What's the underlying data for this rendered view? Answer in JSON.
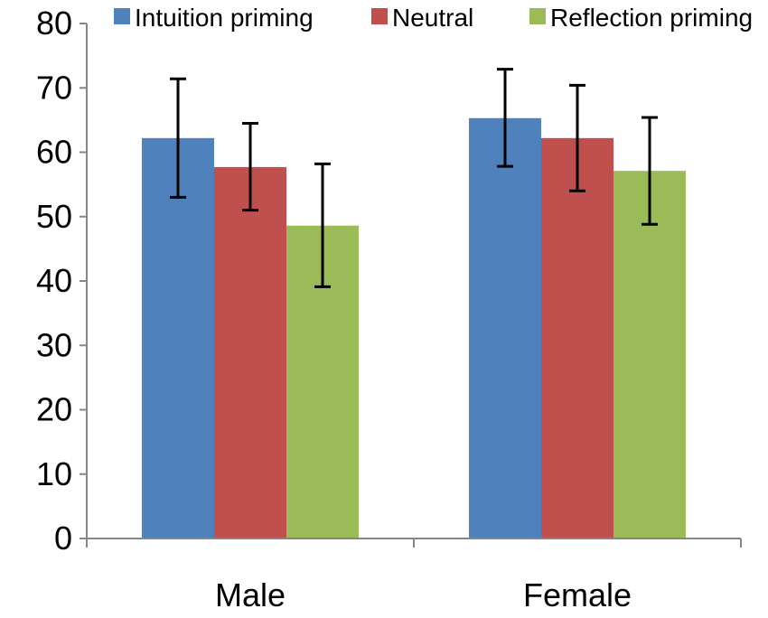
{
  "chart_data": {
    "type": "bar",
    "title": "",
    "xlabel": "",
    "ylabel": "",
    "categories": [
      "Male",
      "Female"
    ],
    "ylim": [
      0,
      80
    ],
    "yticks": [
      0,
      10,
      20,
      30,
      40,
      50,
      60,
      70,
      80
    ],
    "grid": false,
    "legend_position": "top",
    "series": [
      {
        "name": "Intuition priming",
        "color": "#4F81BD",
        "values": [
          62.2,
          65.3
        ],
        "error_low": [
          53.0,
          57.8
        ],
        "error_high": [
          71.4,
          72.9
        ]
      },
      {
        "name": "Neutral",
        "color": "#C0504D",
        "values": [
          57.7,
          62.2
        ],
        "error_low": [
          51.0,
          54.0
        ],
        "error_high": [
          64.5,
          70.4
        ]
      },
      {
        "name": "Reflection priming",
        "color": "#9BBB59",
        "values": [
          48.6,
          57.1
        ],
        "error_low": [
          39.1,
          48.8
        ],
        "error_high": [
          58.2,
          65.4
        ]
      }
    ]
  }
}
